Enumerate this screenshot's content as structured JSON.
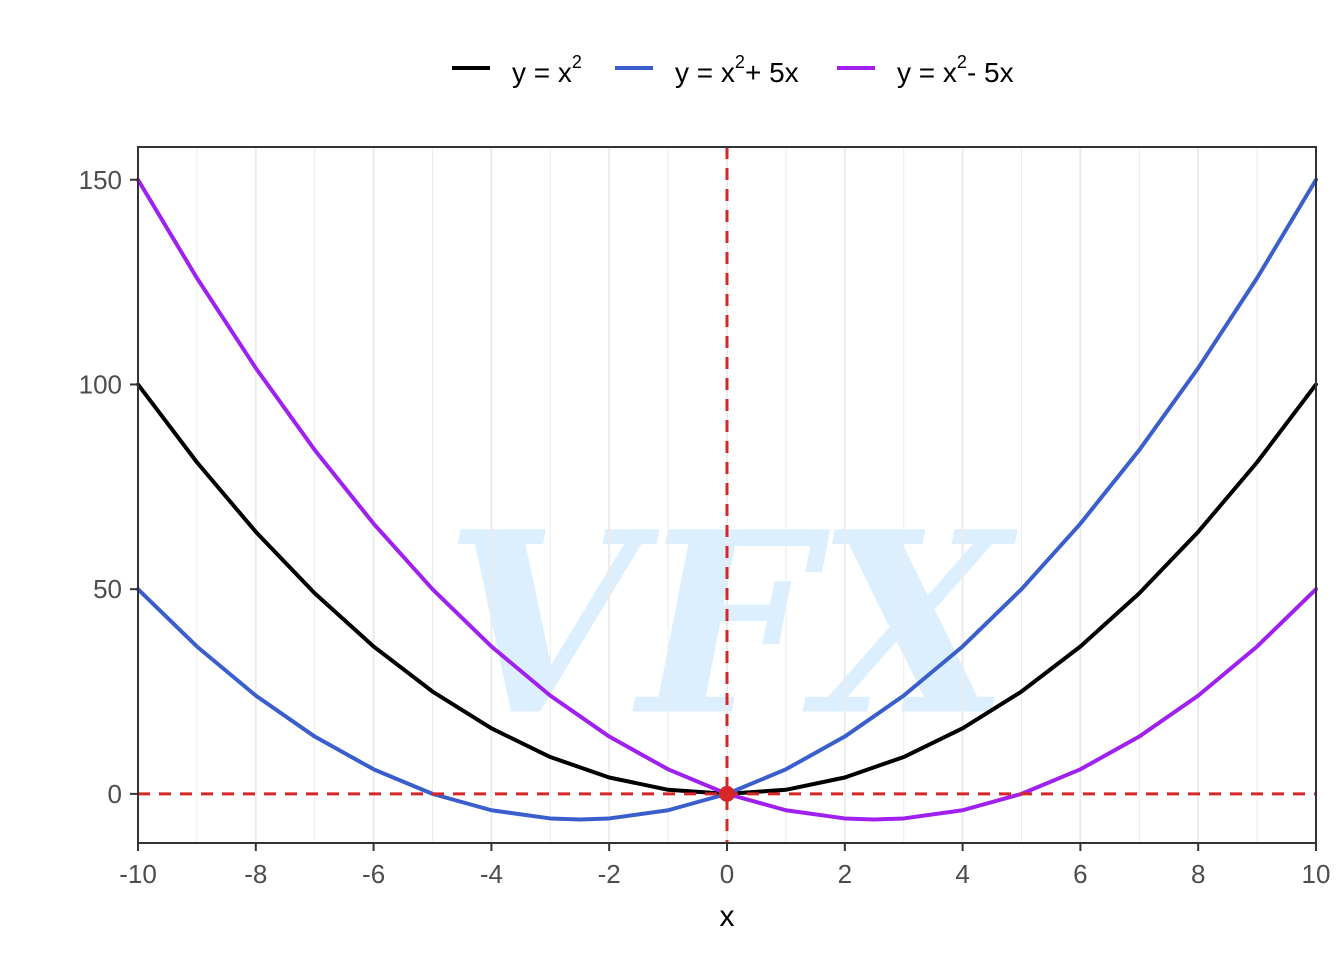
{
  "chart_data": {
    "type": "line",
    "xlabel": "x",
    "ylabel": "",
    "xlim": [
      -10,
      10
    ],
    "ylim": [
      -12,
      158
    ],
    "x_ticks": [
      -10,
      -8,
      -6,
      -4,
      -2,
      0,
      2,
      4,
      6,
      8,
      10
    ],
    "y_ticks": [
      0,
      50,
      100,
      150
    ],
    "grid": "vertical major gridlines only",
    "legend_position": "top",
    "watermark": "VFX",
    "colors": {
      "watermark": "#dcefff",
      "grid": "#ebebeb",
      "reference_line": "#d62728",
      "origin_point": "#d62728"
    },
    "reference_lines": [
      {
        "orientation": "vertical",
        "x": 0,
        "style": "dashed"
      },
      {
        "orientation": "horizontal",
        "y": 0,
        "style": "dashed"
      }
    ],
    "highlight_point": {
      "x": 0,
      "y": 0
    },
    "series": [
      {
        "name_main": "y = x",
        "name_sup": "2",
        "name_tail": "",
        "color": "#000000",
        "x": [
          -10,
          -9,
          -8,
          -7,
          -6,
          -5,
          -4,
          -3,
          -2,
          -1,
          0,
          1,
          2,
          3,
          4,
          5,
          6,
          7,
          8,
          9,
          10
        ],
        "y": [
          100,
          81,
          64,
          49,
          36,
          25,
          16,
          9,
          4,
          1,
          0,
          1,
          4,
          9,
          16,
          25,
          36,
          49,
          64,
          81,
          100
        ]
      },
      {
        "name_main": "y = x",
        "name_sup": "2",
        "name_tail": "+ 5x",
        "color": "#3a5fcd",
        "x": [
          -10,
          -9,
          -8,
          -7,
          -6,
          -5,
          -4,
          -3,
          -2.5,
          -2,
          -1,
          0,
          1,
          2,
          3,
          4,
          5,
          6,
          7,
          8,
          9,
          10
        ],
        "y": [
          50,
          36,
          24,
          14,
          6,
          0,
          -4,
          -6,
          -6.25,
          -6,
          -4,
          0,
          6,
          14,
          24,
          36,
          50,
          66,
          84,
          104,
          126,
          150
        ]
      },
      {
        "name_main": "y = x",
        "name_sup": "2",
        "name_tail": "- 5x",
        "color": "#a020f0",
        "x": [
          -10,
          -9,
          -8,
          -7,
          -6,
          -5,
          -4,
          -3,
          -2,
          -1,
          0,
          1,
          2,
          2.5,
          3,
          4,
          5,
          6,
          7,
          8,
          9,
          10
        ],
        "y": [
          150,
          126,
          104,
          84,
          66,
          50,
          36,
          24,
          14,
          6,
          0,
          -4,
          -6,
          -6.25,
          -6,
          -4,
          0,
          6,
          14,
          24,
          36,
          50
        ]
      }
    ]
  }
}
